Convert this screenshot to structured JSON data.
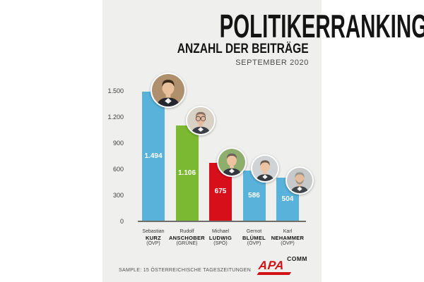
{
  "poster": {
    "title": "POLITIKERRANKING",
    "subtitle": "ANZAHL DER BEITRÄGE",
    "period": "SEPTEMBER 2020",
    "footer": "SAMPLE: 15 ÖSTERREICHISCHE TAGESZEITUNGEN",
    "background": "#efefed",
    "logo": {
      "main": "APA",
      "sub": "COMM",
      "main_color": "#d11317",
      "sub_color": "#1a1a1a"
    }
  },
  "chart_data": {
    "type": "bar",
    "title": "POLITIKERRANKING",
    "subtitle": "ANZAHL DER BEITRÄGE",
    "period": "SEPTEMBER 2020",
    "categories": [
      "Sebastian Kurz (ÖVP)",
      "Rudolf Anschober (GRÜNE)",
      "Michael Ludwig (SPÖ)",
      "Gernot Blümel (ÖVP)",
      "Karl Nehammer (ÖVP)"
    ],
    "values": [
      1494,
      1106,
      675,
      586,
      504
    ],
    "value_labels": [
      "1.494",
      "1.106",
      "675",
      "586",
      "504"
    ],
    "bar_colors": [
      "#58b2da",
      "#7ab931",
      "#d60f1b",
      "#58b2da",
      "#58b2da"
    ],
    "ylim": [
      0,
      1500
    ],
    "yticks": [
      0,
      300,
      600,
      900,
      1200,
      1500
    ],
    "ytick_labels": [
      "0",
      "300",
      "600",
      "900",
      "1.200",
      "1.500"
    ],
    "grid": false,
    "legend": false,
    "xlabel": "",
    "ylabel": ""
  },
  "politicians": [
    {
      "first": "Sebastian",
      "last": "KURZ",
      "party": "(ÖVP)",
      "value": 1494,
      "value_label": "1.494",
      "avatar": {
        "bg": "#b0906c",
        "skin": "#e8c09b",
        "hair": "#3a2a1c",
        "torso": "#26262e",
        "glasses": false,
        "beard": false
      }
    },
    {
      "first": "Rudolf",
      "last": "ANSCHOBER",
      "party": "(GRÜNE)",
      "value": 1106,
      "value_label": "1.106",
      "avatar": {
        "bg": "#d8d2c6",
        "skin": "#e6baa0",
        "hair": "#8d7263",
        "torso": "#3a3f46",
        "glasses": true,
        "beard": false
      }
    },
    {
      "first": "Michael",
      "last": "LUDWIG",
      "party": "(SPÖ)",
      "value": 675,
      "value_label": "675",
      "avatar": {
        "bg": "#8fae6e",
        "skin": "#eec3a2",
        "hair": "#6e625a",
        "torso": "#32373d",
        "glasses": false,
        "beard": false
      }
    },
    {
      "first": "Gernot",
      "last": "BLÜMEL",
      "party": "(ÖVP)",
      "value": 586,
      "value_label": "586",
      "avatar": {
        "bg": "#cfd3d6",
        "skin": "#ecc4a4",
        "hair": "#6b5a44",
        "torso": "#353a40",
        "glasses": false,
        "beard": false
      }
    },
    {
      "first": "Karl",
      "last": "NEHAMMER",
      "party": "(ÖVP)",
      "value": 504,
      "value_label": "504",
      "avatar": {
        "bg": "#c6c8ca",
        "skin": "#e3bb9d",
        "hair": "#97958f",
        "torso": "#41464b",
        "glasses": false,
        "beard": true
      }
    }
  ]
}
